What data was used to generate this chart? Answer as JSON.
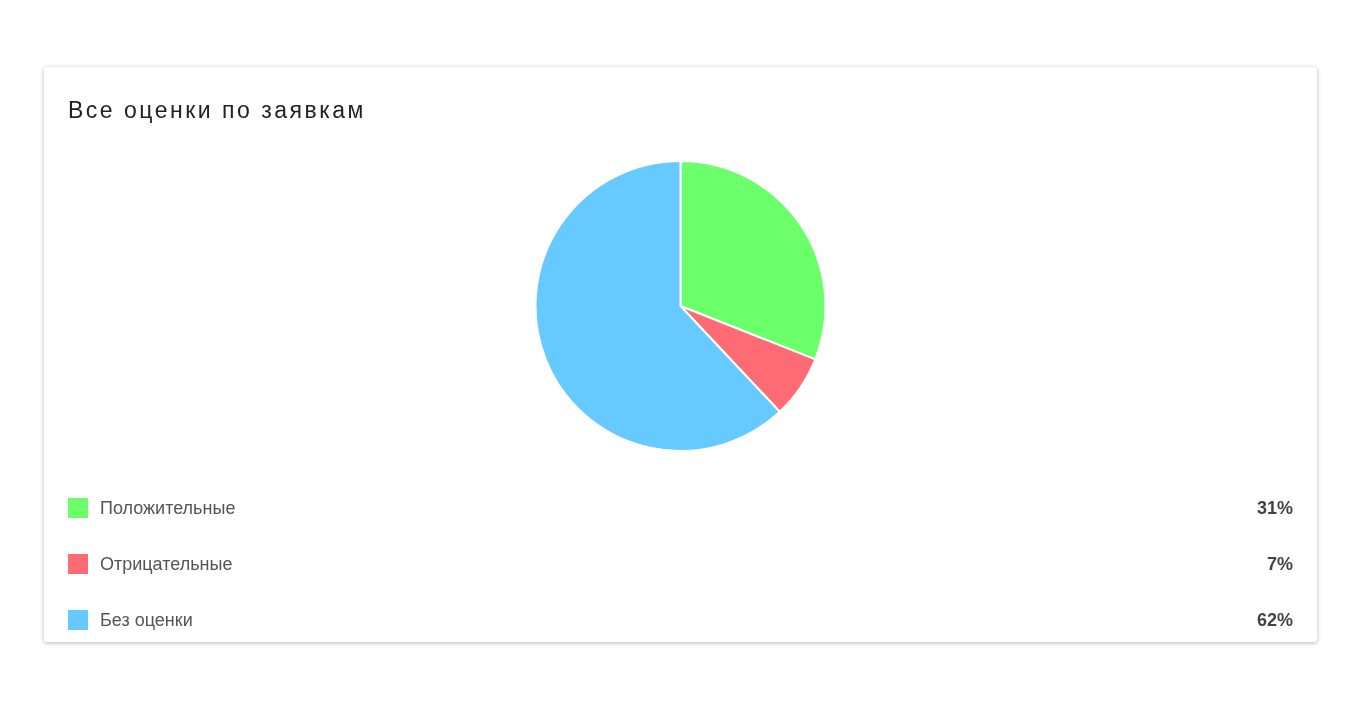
{
  "chart_data": {
    "type": "pie",
    "title": "Все оценки по заявкам",
    "categories": [
      "Положительные",
      "Отрицательные",
      "Без оценки"
    ],
    "values": [
      31,
      7,
      62
    ],
    "value_labels": [
      "31%",
      "7%",
      "62%"
    ],
    "colors": [
      "#6bff6b",
      "#ff6b75",
      "#66c9ff"
    ],
    "legend": "bottom"
  }
}
